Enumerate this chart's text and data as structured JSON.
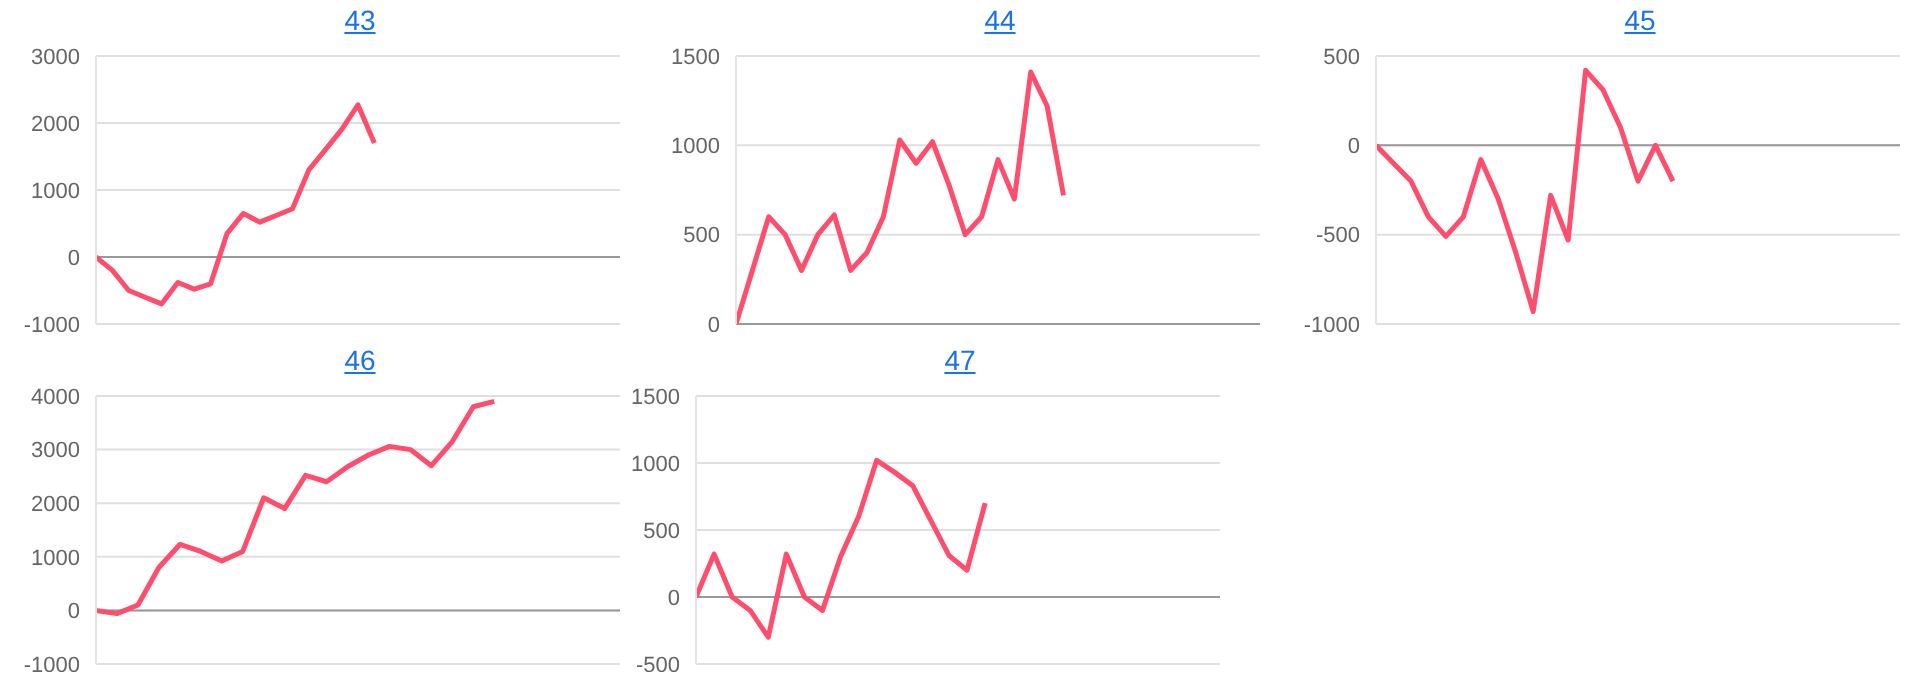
{
  "chart_data": [
    {
      "type": "line",
      "title": "43",
      "categories": [
        null,
        null,
        null,
        null,
        null,
        null,
        null,
        null,
        null,
        null,
        null,
        null,
        null,
        null,
        null,
        null,
        null,
        null,
        null,
        null,
        null,
        null,
        null,
        null,
        null,
        null,
        null,
        null,
        null,
        null,
        null,
        null,
        null
      ],
      "series": [
        {
          "color": "#ff4d6d",
          "values": [
            0,
            -200,
            -500,
            -600,
            -700,
            -380,
            -480,
            -400,
            350,
            650,
            520,
            620,
            720,
            1300,
            1600,
            1900,
            2270,
            1700,
            null,
            null,
            null,
            null,
            null,
            null,
            null,
            null,
            null,
            null,
            null,
            null,
            null,
            null,
            null
          ]
        }
      ],
      "ylim": [
        -1000,
        3000
      ],
      "yticks": [
        -1000,
        0,
        1000,
        2000,
        3000
      ],
      "grid": "y",
      "marker": "none",
      "line_style": "solid",
      "tick_labels": "y",
      "ref_lines": [
        {
          "axis": "y",
          "value": 0,
          "color": "#999999"
        }
      ]
    },
    {
      "type": "line",
      "title": "44",
      "categories": [
        null,
        null,
        null,
        null,
        null,
        null,
        null,
        null,
        null,
        null,
        null,
        null,
        null,
        null,
        null,
        null,
        null,
        null,
        null,
        null,
        null,
        null,
        null,
        null,
        null,
        null,
        null,
        null,
        null,
        null,
        null,
        null,
        null
      ],
      "series": [
        {
          "color": "#ff4d6d",
          "values": [
            0,
            300,
            600,
            500,
            300,
            500,
            610,
            300,
            400,
            600,
            1030,
            900,
            1020,
            780,
            500,
            600,
            920,
            700,
            1410,
            1220,
            720,
            null,
            null,
            null,
            null,
            null,
            null,
            null,
            null,
            null,
            null,
            null,
            null
          ]
        }
      ],
      "ylim": [
        0,
        1500
      ],
      "yticks": [
        0,
        500,
        1000,
        1500
      ],
      "grid": "y",
      "marker": "none",
      "line_style": "solid",
      "tick_labels": "y",
      "ref_lines": [
        {
          "axis": "y",
          "value": 0,
          "color": "#999999"
        }
      ]
    },
    {
      "type": "line",
      "title": "45",
      "categories": [
        null,
        null,
        null,
        null,
        null,
        null,
        null,
        null,
        null,
        null,
        null,
        null,
        null,
        null,
        null,
        null,
        null,
        null,
        null,
        null,
        null,
        null,
        null,
        null,
        null,
        null,
        null,
        null,
        null,
        null,
        null
      ],
      "series": [
        {
          "color": "#ff4d6d",
          "values": [
            0,
            -100,
            -200,
            -400,
            -510,
            -400,
            -80,
            -300,
            -600,
            -930,
            -280,
            -530,
            420,
            310,
            100,
            -200,
            0,
            -200,
            null,
            null,
            null,
            null,
            null,
            null,
            null,
            null,
            null,
            null,
            null,
            null,
            null
          ]
        }
      ],
      "ylim": [
        -1000,
        500
      ],
      "yticks": [
        -1000,
        -500,
        0,
        500
      ],
      "grid": "y",
      "marker": "none",
      "line_style": "solid",
      "tick_labels": "y",
      "ref_lines": [
        {
          "axis": "y",
          "value": 0,
          "color": "#999999"
        }
      ]
    },
    {
      "type": "line",
      "title": "46",
      "categories": [
        null,
        null,
        null,
        null,
        null,
        null,
        null,
        null,
        null,
        null,
        null,
        null,
        null,
        null,
        null,
        null,
        null,
        null,
        null,
        null,
        null,
        null,
        null,
        null,
        null,
        null
      ],
      "series": [
        {
          "color": "#ff4d6d",
          "values": [
            0,
            -60,
            100,
            800,
            1230,
            1100,
            920,
            1100,
            2100,
            1900,
            2520,
            2400,
            2680,
            2900,
            3060,
            3000,
            2700,
            3150,
            3800,
            3900,
            null,
            null,
            null,
            null,
            null,
            null
          ]
        }
      ],
      "ylim": [
        -1000,
        4000
      ],
      "yticks": [
        -1000,
        0,
        1000,
        2000,
        3000,
        4000
      ],
      "grid": "y",
      "marker": "none",
      "line_style": "solid",
      "tick_labels": "y",
      "ref_lines": [
        {
          "axis": "y",
          "value": 0,
          "color": "#999999"
        }
      ]
    },
    {
      "type": "line",
      "title": "47",
      "categories": [
        null,
        null,
        null,
        null,
        null,
        null,
        null,
        null,
        null,
        null,
        null,
        null,
        null,
        null,
        null,
        null,
        null,
        null,
        null,
        null,
        null,
        null,
        null,
        null,
        null,
        null,
        null,
        null,
        null,
        null
      ],
      "series": [
        {
          "color": "#ff4d6d",
          "values": [
            0,
            320,
            0,
            -100,
            -300,
            320,
            0,
            -100,
            300,
            600,
            1020,
            930,
            830,
            570,
            310,
            200,
            700,
            null,
            null,
            null,
            null,
            null,
            null,
            null,
            null,
            null,
            null,
            null,
            null,
            null
          ]
        }
      ],
      "ylim": [
        -500,
        1500
      ],
      "yticks": [
        -500,
        0,
        500,
        1000,
        1500
      ],
      "grid": "y",
      "marker": "none",
      "line_style": "solid",
      "tick_labels": "y",
      "ref_lines": [
        {
          "axis": "y",
          "value": 0,
          "color": "#999999"
        }
      ]
    }
  ]
}
